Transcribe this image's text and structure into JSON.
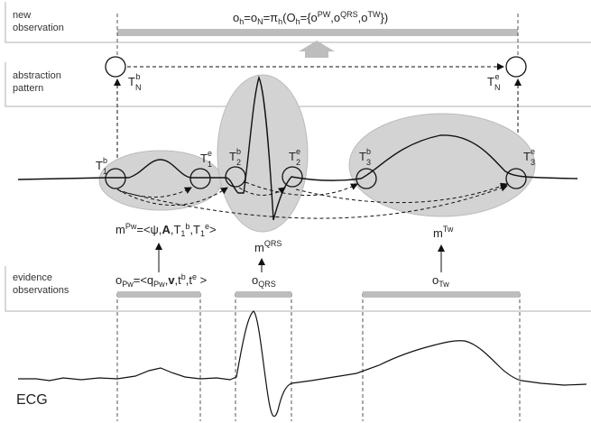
{
  "sections": {
    "new_observation": [
      "new",
      "observation"
    ],
    "abstraction_pattern": [
      "abstraction",
      "pattern"
    ],
    "evidence_observations": [
      "evidence",
      "observations"
    ]
  },
  "formula": {
    "main": "o",
    "main_sub": "h",
    "eq1": "=o",
    "eq1_sub": "N",
    "eq2": "=π",
    "eq2_sub": "h",
    "open": "(O",
    "open_sub": "h",
    "set_open": "={o",
    "set_sup1": "PW",
    "comma1": ",o",
    "set_sup2": "QRS",
    "comma2": ",o",
    "set_sup3": "TW",
    "close": "})"
  },
  "time_points": {
    "TNb": {
      "base": "T",
      "sub": "N",
      "sup": "b"
    },
    "TNe": {
      "base": "T",
      "sub": "N",
      "sup": "e"
    },
    "T1b": {
      "base": "T",
      "sub": "1",
      "sup": "b"
    },
    "T1e": {
      "base": "T",
      "sub": "1",
      "sup": "e"
    },
    "T2b": {
      "base": "T",
      "sub": "2",
      "sup": "b"
    },
    "T2e": {
      "base": "T",
      "sub": "2",
      "sup": "e"
    },
    "T3b": {
      "base": "T",
      "sub": "3",
      "sup": "b"
    },
    "T3e": {
      "base": "T",
      "sub": "3",
      "sup": "e"
    }
  },
  "findings": {
    "mPw": {
      "base": "m",
      "sup": "Pw",
      "rest": "=<ψ,",
      "bold": "A",
      "tail": ",T",
      "t1": "1",
      "t1sup": "b",
      "mid": ",T",
      "t2": "1",
      "t2sup": "e",
      "end": ">"
    },
    "mQRS": {
      "base": "m",
      "sup": "QRS"
    },
    "mTw": {
      "base": "m",
      "sup": "Tw"
    }
  },
  "observations": {
    "oPw": {
      "base": "o",
      "sub": "Pw",
      "rest": "=<q",
      "qsub": "Pw",
      "comma": ",",
      "bold": "v",
      "tail": ",t",
      "tsup1": "b",
      "mid": ",t",
      "tsup2": "e",
      "end": " >"
    },
    "oQRS": {
      "base": "o",
      "sub": "QRS"
    },
    "oTw": {
      "base": "o",
      "sub": "Tw"
    }
  },
  "signal_label": "ECG",
  "colors": {
    "region_fill": "#d3d3d3",
    "bar": "#bdbdbd",
    "line": "#111111",
    "divider": "#b0b0b0"
  }
}
